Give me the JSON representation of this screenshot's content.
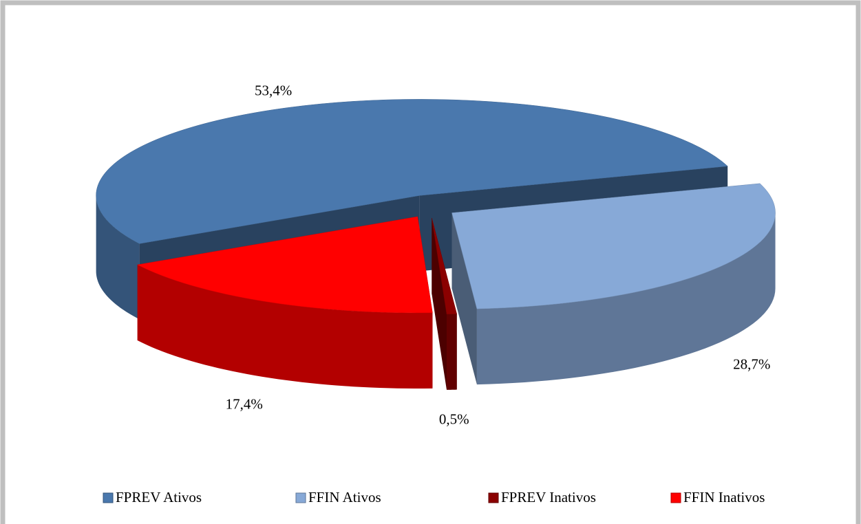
{
  "chart_data": {
    "type": "pie",
    "categories": [
      "FPREV Ativos",
      "FFIN Ativos",
      "FPREV Inativos",
      "FFIN Inativos"
    ],
    "values": [
      53.4,
      28.7,
      0.5,
      17.4
    ],
    "value_labels": [
      "53,4%",
      "28,7%",
      "0,5%",
      "17,4%"
    ],
    "colors": [
      "#4a78ad",
      "#87a9d7",
      "#8b0000",
      "#ff0000"
    ],
    "legend": "bottom"
  }
}
